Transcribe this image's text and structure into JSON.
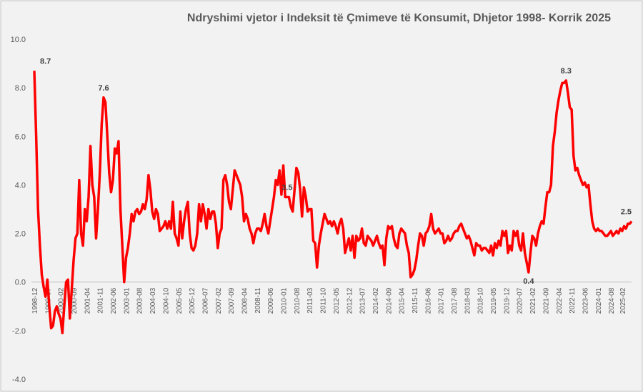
{
  "chart_data": {
    "type": "line",
    "title": "Ndryshimi vjetor i Indeksit të Çmimeve të Konsumit, Dhjetor 1998- Korrik 2025",
    "categories": [
      "1998-12",
      null,
      null,
      null,
      null,
      null,
      null,
      "1999-07",
      null,
      null,
      null,
      null,
      null,
      null,
      "2000-02",
      null,
      null,
      null,
      null,
      null,
      null,
      "2000-09",
      null,
      null,
      null,
      null,
      null,
      null,
      "2001-04",
      null,
      null,
      null,
      null,
      null,
      null,
      "2001-11",
      null,
      null,
      null,
      null,
      null,
      null,
      "2002-06",
      null,
      null,
      null,
      null,
      null,
      null,
      "2003-01",
      null,
      null,
      null,
      null,
      null,
      null,
      "2003-08",
      null,
      null,
      null,
      null,
      null,
      null,
      "2004-03",
      null,
      null,
      null,
      null,
      null,
      null,
      "2004-10",
      null,
      null,
      null,
      null,
      null,
      null,
      "2005-05",
      null,
      null,
      null,
      null,
      null,
      null,
      "2005-12",
      null,
      null,
      null,
      null,
      null,
      null,
      "2006-07",
      null,
      null,
      null,
      null,
      null,
      null,
      "2007-02",
      null,
      null,
      null,
      null,
      null,
      null,
      "2007-09",
      null,
      null,
      null,
      null,
      null,
      null,
      "2008-04",
      null,
      null,
      null,
      null,
      null,
      null,
      "2008-11",
      null,
      null,
      null,
      null,
      null,
      null,
      "2009-06",
      null,
      null,
      null,
      null,
      null,
      null,
      "2010-01",
      null,
      null,
      null,
      null,
      null,
      null,
      "2010-08",
      null,
      null,
      null,
      null,
      null,
      null,
      "2011-03",
      null,
      null,
      null,
      null,
      null,
      null,
      "2011-10",
      null,
      null,
      null,
      null,
      null,
      null,
      "2012-05",
      null,
      null,
      null,
      null,
      null,
      null,
      "2012-12",
      null,
      null,
      null,
      null,
      null,
      null,
      "2013-07",
      null,
      null,
      null,
      null,
      null,
      null,
      "2014-02",
      null,
      null,
      null,
      null,
      null,
      null,
      "2014-09",
      null,
      null,
      null,
      null,
      null,
      null,
      "2015-04",
      null,
      null,
      null,
      null,
      null,
      null,
      "2015-11",
      null,
      null,
      null,
      null,
      null,
      null,
      "2016-06",
      null,
      null,
      null,
      null,
      null,
      null,
      "2017-01",
      null,
      null,
      null,
      null,
      null,
      null,
      "2017-08",
      null,
      null,
      null,
      null,
      null,
      null,
      "2018-03",
      null,
      null,
      null,
      null,
      null,
      null,
      "2018-10",
      null,
      null,
      null,
      null,
      null,
      null,
      "2019-05",
      null,
      null,
      null,
      null,
      null,
      null,
      "2019-12",
      null,
      null,
      null,
      null,
      null,
      null,
      "2020-07",
      null,
      null,
      null,
      null,
      null,
      null,
      "2021-02",
      null,
      null,
      null,
      null,
      null,
      null,
      "2021-09",
      null,
      null,
      null,
      null,
      null,
      null,
      "2022-04",
      null,
      null,
      null,
      null,
      null,
      null,
      "2022-11",
      null,
      null,
      null,
      null,
      null,
      null,
      "2023-06",
      null,
      null,
      null,
      null,
      null,
      null,
      "2024-01",
      null,
      null,
      null,
      null,
      null,
      null,
      "2024-08",
      null,
      null,
      null,
      null,
      null,
      "2025-02",
      null,
      null,
      null,
      null,
      null
    ],
    "values": [
      8.7,
      6.0,
      3.0,
      1.5,
      0.3,
      -0.2,
      -0.6,
      0.1,
      -1.0,
      -1.9,
      -1.8,
      -1.2,
      -1.0,
      -1.3,
      -1.5,
      -2.1,
      -1.0,
      0.0,
      0.1,
      -1.5,
      -0.3,
      0.9,
      1.8,
      2.0,
      4.2,
      2.0,
      1.5,
      3.0,
      2.5,
      3.5,
      5.6,
      4.0,
      3.5,
      1.8,
      3.0,
      4.5,
      6.5,
      7.6,
      7.4,
      6.0,
      4.5,
      3.7,
      4.2,
      5.5,
      5.3,
      5.8,
      3.0,
      1.5,
      0.0,
      1.0,
      1.4,
      2.0,
      2.8,
      2.5,
      2.9,
      3.0,
      2.8,
      2.9,
      3.2,
      3.0,
      3.4,
      4.4,
      3.8,
      2.9,
      2.6,
      3.0,
      2.8,
      2.1,
      2.2,
      2.3,
      2.5,
      2.2,
      2.5,
      2.2,
      3.3,
      2.0,
      1.8,
      1.5,
      2.9,
      1.8,
      2.5,
      3.0,
      3.3,
      2.0,
      1.4,
      1.3,
      1.5,
      2.0,
      3.2,
      2.5,
      3.2,
      2.8,
      2.2,
      3.0,
      2.6,
      2.9,
      2.9,
      2.4,
      1.4,
      2.0,
      2.2,
      4.2,
      4.4,
      4.0,
      3.3,
      3.0,
      3.8,
      4.6,
      4.4,
      4.2,
      4.0,
      3.5,
      2.5,
      2.8,
      2.6,
      2.2,
      2.0,
      1.6,
      2.0,
      2.2,
      2.2,
      2.1,
      2.4,
      2.8,
      2.3,
      2.0,
      2.5,
      3.0,
      3.5,
      4.2,
      4.0,
      4.6,
      3.6,
      4.8,
      3.5,
      3.5,
      3.5,
      3.1,
      2.9,
      3.8,
      4.7,
      4.5,
      3.8,
      2.7,
      3.9,
      3.5,
      2.9,
      3.0,
      3.0,
      1.7,
      1.6,
      0.6,
      1.5,
      2.0,
      2.4,
      2.8,
      2.6,
      2.4,
      2.5,
      2.3,
      2.5,
      2.3,
      2.0,
      2.4,
      2.6,
      2.2,
      1.2,
      1.5,
      1.8,
      1.3,
      1.9,
      1.0,
      1.9,
      1.7,
      1.8,
      2.2,
      1.6,
      1.5,
      1.9,
      1.8,
      1.7,
      1.5,
      1.7,
      1.9,
      1.6,
      1.4,
      1.5,
      0.7,
      1.8,
      2.3,
      2.2,
      2.3,
      1.8,
      1.5,
      1.4,
      2.0,
      2.2,
      2.1,
      2.0,
      1.5,
      1.2,
      0.2,
      0.3,
      0.5,
      0.9,
      1.5,
      2.0,
      1.9,
      1.5,
      2.0,
      2.1,
      2.3,
      2.8,
      2.2,
      2.0,
      2.1,
      2.2,
      2.0,
      2.0,
      1.6,
      1.7,
      1.9,
      1.7,
      1.8,
      2.0,
      2.1,
      2.1,
      2.3,
      2.4,
      2.2,
      2.0,
      1.8,
      1.9,
      1.7,
      1.4,
      1.1,
      1.6,
      1.5,
      1.5,
      1.3,
      1.4,
      1.4,
      1.3,
      1.2,
      1.5,
      1.1,
      1.6,
      1.4,
      1.7,
      1.5,
      2.1,
      1.9,
      2.1,
      1.2,
      1.5,
      1.3,
      2.1,
      1.9,
      2.1,
      1.5,
      1.3,
      2.0,
      1.2,
      0.8,
      0.4,
      1.2,
      1.9,
      1.8,
      1.5,
      2.0,
      2.3,
      2.5,
      2.4,
      3.1,
      3.7,
      3.7,
      4.0,
      5.6,
      6.2,
      7.0,
      7.5,
      7.9,
      8.2,
      8.2,
      8.3,
      7.8,
      7.2,
      7.1,
      5.2,
      4.6,
      4.7,
      4.4,
      4.2,
      4.0,
      4.1,
      3.9,
      4.0,
      3.2,
      2.5,
      2.2,
      2.1,
      2.2,
      2.1,
      2.1,
      2.0,
      1.9,
      1.9,
      2.0,
      2.1,
      1.9,
      2.0,
      2.1,
      2.0,
      2.2,
      2.1,
      2.3,
      2.2,
      2.4,
      2.4,
      2.5
    ],
    "value_labels": [
      "8.7",
      null,
      null,
      null,
      null,
      null,
      null,
      null,
      null,
      null,
      null,
      null,
      null,
      null,
      null,
      null,
      null,
      null,
      null,
      null,
      null,
      null,
      null,
      null,
      null,
      null,
      null,
      null,
      null,
      null,
      null,
      null,
      null,
      null,
      null,
      null,
      null,
      "7.6",
      null,
      null,
      null,
      null,
      null,
      null,
      null,
      null,
      null,
      null,
      null,
      null,
      null,
      null,
      null,
      null,
      null,
      null,
      null,
      null,
      null,
      null,
      null,
      null,
      null,
      null,
      null,
      null,
      null,
      null,
      null,
      null,
      null,
      null,
      null,
      null,
      null,
      null,
      null,
      null,
      null,
      null,
      null,
      null,
      null,
      null,
      null,
      null,
      null,
      null,
      null,
      null,
      null,
      null,
      null,
      null,
      null,
      null,
      null,
      null,
      null,
      null,
      null,
      null,
      null,
      null,
      null,
      null,
      null,
      null,
      null,
      null,
      null,
      null,
      null,
      null,
      null,
      null,
      null,
      null,
      null,
      null,
      null,
      null,
      null,
      null,
      null,
      null,
      null,
      null,
      null,
      null,
      null,
      null,
      null,
      null,
      null,
      "3.5",
      null,
      null,
      null,
      null,
      null,
      null,
      null,
      null,
      null,
      null,
      null,
      null,
      null,
      null,
      null,
      null,
      null,
      null,
      null,
      null,
      null,
      null,
      null,
      null,
      null,
      null,
      null,
      null,
      null,
      null,
      null,
      null,
      null,
      null,
      null,
      null,
      null,
      null,
      null,
      null,
      null,
      null,
      null,
      null,
      null,
      null,
      null,
      null,
      null,
      null,
      null,
      null,
      null,
      null,
      null,
      null,
      null,
      null,
      null,
      null,
      null,
      null,
      null,
      null,
      null,
      null,
      null,
      null,
      null,
      null,
      null,
      null,
      null,
      null,
      null,
      null,
      null,
      null,
      null,
      null,
      null,
      null,
      null,
      null,
      null,
      null,
      null,
      null,
      null,
      null,
      null,
      null,
      null,
      null,
      null,
      null,
      null,
      null,
      null,
      null,
      null,
      null,
      null,
      null,
      null,
      null,
      null,
      null,
      null,
      null,
      null,
      null,
      null,
      null,
      null,
      null,
      null,
      null,
      null,
      null,
      null,
      null,
      null,
      null,
      null,
      null,
      null,
      null,
      "0.4",
      null,
      null,
      null,
      null,
      null,
      null,
      null,
      null,
      null,
      null,
      null,
      null,
      null,
      null,
      null,
      null,
      null,
      null,
      null,
      "8.3",
      null,
      null,
      null,
      null,
      null,
      null,
      null,
      null,
      null,
      null,
      null,
      null,
      null,
      null,
      null,
      null,
      null,
      null,
      null,
      null,
      null,
      null,
      null,
      null,
      null,
      null,
      null,
      null,
      null,
      null,
      null,
      null,
      null,
      null,
      "2.5"
    ],
    "color": "#ff0000",
    "ylim": [
      -4,
      10
    ],
    "yticks": [
      {
        "value": 10,
        "label": "10.0"
      },
      {
        "value": 8,
        "label": "8.0"
      },
      {
        "value": 6,
        "label": "6.0"
      },
      {
        "value": 4,
        "label": "4.0"
      },
      {
        "value": 2,
        "label": "2.0"
      },
      {
        "value": 0,
        "label": "0.0"
      },
      {
        "value": -2,
        "label": "-2.0"
      },
      {
        "value": -4,
        "label": "-4.0"
      }
    ],
    "grid": false
  }
}
